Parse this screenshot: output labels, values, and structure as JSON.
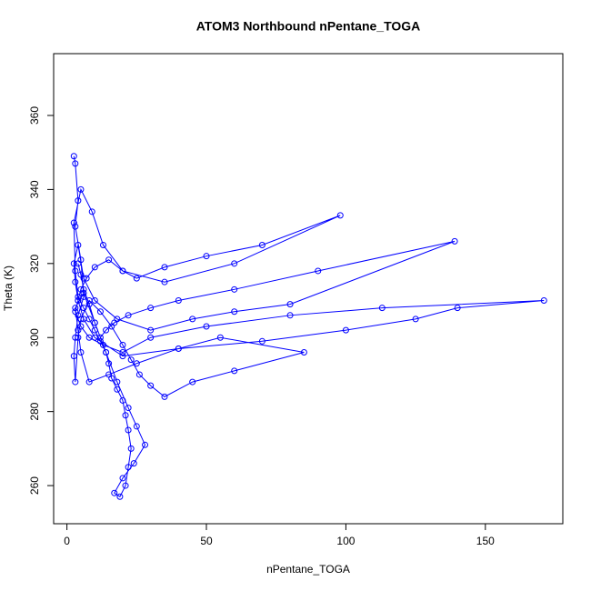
{
  "chart_data": {
    "type": "line",
    "title": "ATOM3 Northbound nPentane_TOGA",
    "x_label": "nPentane_TOGA",
    "y_label": "Theta (K)",
    "markers": true,
    "xlim": [
      -4.76,
      177.76
    ],
    "ylim": [
      249.7,
      376.7
    ],
    "xticks": [
      0,
      50,
      100,
      150
    ],
    "yticks": [
      260,
      280,
      300,
      320,
      340,
      360
    ],
    "series": [
      {
        "color": "#0000ff",
        "x": [
          2.5,
          3,
          4,
          3,
          5,
          6,
          4,
          3,
          2.5,
          3,
          4,
          5,
          8,
          12,
          16,
          20,
          23,
          26,
          30,
          35,
          45,
          60,
          85,
          55,
          40,
          25,
          15,
          8,
          5,
          4,
          3,
          6,
          10,
          14,
          18,
          22,
          25,
          28,
          24,
          20,
          17,
          19,
          21,
          22,
          23,
          22,
          21,
          20,
          18,
          16,
          15,
          14,
          12,
          10,
          8,
          6,
          4,
          3,
          2.5,
          5,
          9,
          13,
          20,
          35,
          60,
          98,
          70,
          50,
          35,
          25,
          20,
          15,
          10,
          7,
          5,
          4,
          3,
          5,
          8,
          13,
          20,
          30,
          50,
          80,
          113,
          171,
          140,
          125,
          100,
          70,
          40,
          20,
          10,
          6,
          4,
          3,
          2.5,
          4,
          6,
          10,
          18,
          30,
          45,
          60,
          80,
          139,
          90,
          60,
          40,
          30,
          22,
          17,
          14,
          12,
          10,
          8,
          6,
          5,
          4
        ],
        "values": [
          349,
          347,
          337,
          330,
          321,
          311,
          306,
          300,
          295,
          288,
          300,
          305,
          310,
          307,
          303,
          298,
          294,
          290,
          287,
          284,
          288,
          291,
          296,
          300,
          297,
          293,
          290,
          288,
          296,
          302,
          308,
          312,
          304,
          296,
          288,
          281,
          276,
          271,
          266,
          262,
          258,
          257,
          260,
          265,
          270,
          275,
          279,
          283,
          286,
          289,
          293,
          296,
          299,
          302,
          305,
          308,
          311,
          318,
          331,
          340,
          334,
          325,
          318,
          315,
          320,
          333,
          325,
          322,
          319,
          316,
          318,
          321,
          319,
          316,
          313,
          310,
          307,
          303,
          300,
          298,
          296,
          300,
          303,
          306,
          308,
          310,
          308,
          305,
          302,
          299,
          297,
          295,
          300,
          305,
          310,
          315,
          320,
          325,
          316,
          310,
          305,
          302,
          305,
          307,
          309,
          326,
          318,
          313,
          310,
          308,
          306,
          304,
          302,
          300,
          304,
          309,
          313,
          317,
          320
        ]
      }
    ]
  }
}
